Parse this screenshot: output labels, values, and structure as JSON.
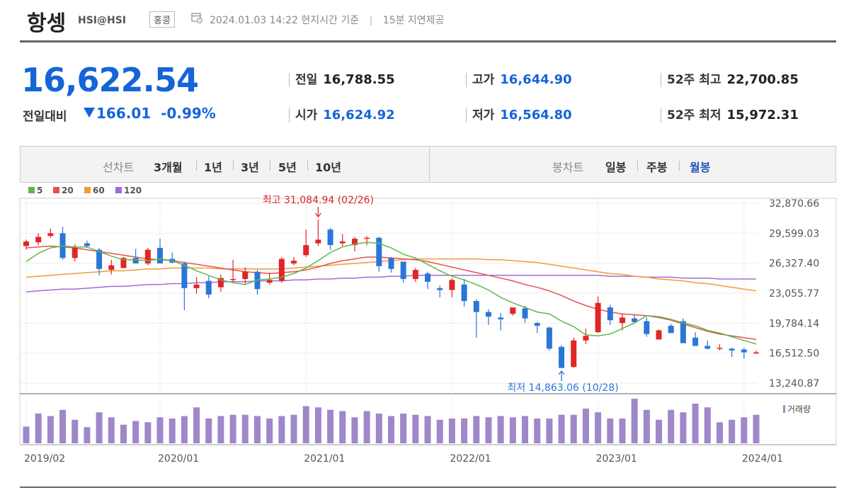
{
  "header": {
    "title": "항셍",
    "code": "HSI@HSI",
    "market": "홍콩",
    "datetime": "2024.01.03 14:22",
    "basis": "현지시간 기준",
    "delay": "15분 지연제공"
  },
  "quote": {
    "price": "16,622.54",
    "change_label": "전일대비",
    "change": "166.01",
    "change_pct": "-0.99%",
    "stats": [
      {
        "label": "전일",
        "value": "16,788.55"
      },
      {
        "label": "시가",
        "value": "16,624.92"
      },
      {
        "label": "고가",
        "value": "16,644.90"
      },
      {
        "label": "저가",
        "value": "16,564.80"
      },
      {
        "label": "52주 최고",
        "value": "22,700.85"
      },
      {
        "label": "52주 최저",
        "value": "15,972.31"
      }
    ]
  },
  "tabs": {
    "line_label": "선차트",
    "line_periods": [
      "3개월",
      "1년",
      "3년",
      "5년",
      "10년"
    ],
    "candle_label": "봉차트",
    "candle_periods": [
      "일봉",
      "주봉",
      "월봉"
    ],
    "candle_selected": "월봉"
  },
  "colors": {
    "up": "#e02626",
    "down": "#2a76d8",
    "ma5": "#5cb84a",
    "ma20": "#e85050",
    "ma60": "#f39a3a",
    "ma120": "#a46ad8",
    "volume": "#9f87c9"
  },
  "chart_data": {
    "type": "candlestick",
    "interval": "monthly",
    "legend": [
      "5",
      "20",
      "60",
      "120"
    ],
    "y_ticks": [
      "32,870.66",
      "29,599.03",
      "26,327.40",
      "23,055.77",
      "19,784.14",
      "16,512.50",
      "13,240.87"
    ],
    "x_ticks": [
      "2019/02",
      "2020/01",
      "2021/01",
      "2022/01",
      "2023/01",
      "2024/01"
    ],
    "ylim": [
      13240.87,
      32870.66
    ],
    "high_annotation": {
      "label": "최고 31,084.94 (02/26)",
      "value": 31084.94,
      "index": 24
    },
    "low_annotation": {
      "label": "최저 14,863.06 (10/28)",
      "value": 14863.06,
      "index": 44
    },
    "volume_label": "거래량",
    "candles": [
      {
        "o": 28200,
        "h": 28900,
        "l": 27800,
        "c": 28700
      },
      {
        "o": 28600,
        "h": 29600,
        "l": 28300,
        "c": 29200
      },
      {
        "o": 29300,
        "h": 30100,
        "l": 29100,
        "c": 29600
      },
      {
        "o": 29600,
        "h": 30300,
        "l": 26700,
        "c": 26900
      },
      {
        "o": 26900,
        "h": 28400,
        "l": 26500,
        "c": 28000
      },
      {
        "o": 28500,
        "h": 28800,
        "l": 28000,
        "c": 28200
      },
      {
        "o": 27800,
        "h": 28000,
        "l": 25000,
        "c": 25700
      },
      {
        "o": 25600,
        "h": 26700,
        "l": 25100,
        "c": 26100
      },
      {
        "o": 25800,
        "h": 27000,
        "l": 25800,
        "c": 26900
      },
      {
        "o": 26900,
        "h": 27900,
        "l": 26400,
        "c": 26300
      },
      {
        "o": 26300,
        "h": 28000,
        "l": 26100,
        "c": 27800
      },
      {
        "o": 28000,
        "h": 29000,
        "l": 26300,
        "c": 26300
      },
      {
        "o": 26800,
        "h": 27500,
        "l": 26300,
        "c": 26400
      },
      {
        "o": 26300,
        "h": 26500,
        "l": 21200,
        "c": 23600
      },
      {
        "o": 23600,
        "h": 24800,
        "l": 23000,
        "c": 24000
      },
      {
        "o": 24400,
        "h": 24900,
        "l": 22500,
        "c": 22900
      },
      {
        "o": 23700,
        "h": 25100,
        "l": 23200,
        "c": 24700
      },
      {
        "o": 24600,
        "h": 26700,
        "l": 24300,
        "c": 24600
      },
      {
        "o": 24600,
        "h": 25900,
        "l": 24100,
        "c": 25400
      },
      {
        "o": 25400,
        "h": 25600,
        "l": 22900,
        "c": 23500
      },
      {
        "o": 24200,
        "h": 25300,
        "l": 24000,
        "c": 24500
      },
      {
        "o": 24400,
        "h": 27000,
        "l": 24200,
        "c": 26800
      },
      {
        "o": 26300,
        "h": 27000,
        "l": 26100,
        "c": 26600
      },
      {
        "o": 27200,
        "h": 30000,
        "l": 27000,
        "c": 28300
      },
      {
        "o": 28500,
        "h": 31085,
        "l": 28200,
        "c": 28900
      },
      {
        "o": 30000,
        "h": 30200,
        "l": 27800,
        "c": 28300
      },
      {
        "o": 28500,
        "h": 29500,
        "l": 28200,
        "c": 28700
      },
      {
        "o": 28300,
        "h": 29200,
        "l": 27600,
        "c": 29000
      },
      {
        "o": 29000,
        "h": 29300,
        "l": 28300,
        "c": 29100
      },
      {
        "o": 29100,
        "h": 29200,
        "l": 25400,
        "c": 26000
      },
      {
        "o": 26900,
        "h": 27000,
        "l": 25300,
        "c": 25700
      },
      {
        "o": 26500,
        "h": 26500,
        "l": 24200,
        "c": 24600
      },
      {
        "o": 24600,
        "h": 25800,
        "l": 24300,
        "c": 25600
      },
      {
        "o": 25200,
        "h": 25400,
        "l": 23500,
        "c": 24300
      },
      {
        "o": 23600,
        "h": 23900,
        "l": 22600,
        "c": 23400
      },
      {
        "o": 23400,
        "h": 24700,
        "l": 22600,
        "c": 24500
      },
      {
        "o": 24000,
        "h": 24600,
        "l": 21600,
        "c": 22200
      },
      {
        "o": 22200,
        "h": 22400,
        "l": 18200,
        "c": 21000
      },
      {
        "o": 21000,
        "h": 21300,
        "l": 19600,
        "c": 20500
      },
      {
        "o": 20400,
        "h": 20900,
        "l": 19000,
        "c": 20200
      },
      {
        "o": 20800,
        "h": 21400,
        "l": 20600,
        "c": 21500
      },
      {
        "o": 21400,
        "h": 21700,
        "l": 19800,
        "c": 20300
      },
      {
        "o": 19800,
        "h": 19900,
        "l": 18700,
        "c": 19500
      },
      {
        "o": 19300,
        "h": 19400,
        "l": 16800,
        "c": 17000
      },
      {
        "o": 17200,
        "h": 17400,
        "l": 14863,
        "c": 14900
      },
      {
        "o": 15000,
        "h": 18200,
        "l": 14900,
        "c": 17900
      },
      {
        "o": 17900,
        "h": 19200,
        "l": 17500,
        "c": 18400
      },
      {
        "o": 18800,
        "h": 22700,
        "l": 18700,
        "c": 22000
      },
      {
        "o": 21500,
        "h": 21800,
        "l": 19600,
        "c": 20100
      },
      {
        "o": 19800,
        "h": 20800,
        "l": 19000,
        "c": 20400
      },
      {
        "o": 20300,
        "h": 20700,
        "l": 19800,
        "c": 19900
      },
      {
        "o": 20000,
        "h": 20400,
        "l": 18300,
        "c": 18600
      },
      {
        "o": 18000,
        "h": 19100,
        "l": 18000,
        "c": 19000
      },
      {
        "o": 19500,
        "h": 19700,
        "l": 18800,
        "c": 18700
      },
      {
        "o": 20000,
        "h": 20300,
        "l": 17700,
        "c": 17600
      },
      {
        "o": 18200,
        "h": 18800,
        "l": 17400,
        "c": 17300
      },
      {
        "o": 17300,
        "h": 17900,
        "l": 16900,
        "c": 17000
      },
      {
        "o": 17000,
        "h": 17500,
        "l": 16800,
        "c": 17100
      },
      {
        "o": 17000,
        "h": 17100,
        "l": 16100,
        "c": 16800
      },
      {
        "o": 16900,
        "h": 17100,
        "l": 15900,
        "c": 16600
      },
      {
        "o": 16500,
        "h": 16800,
        "l": 16400,
        "c": 16600
      }
    ],
    "ma5": [
      26500,
      27400,
      28000,
      28200,
      28100,
      28100,
      27600,
      27100,
      26700,
      26700,
      26600,
      26800,
      26600,
      26100,
      25500,
      25000,
      24500,
      24200,
      24000,
      24500,
      24600,
      24800,
      25200,
      25800,
      26600,
      27500,
      28100,
      28400,
      28600,
      28500,
      28000,
      27300,
      26900,
      26200,
      25500,
      24900,
      24500,
      24000,
      23400,
      22600,
      22000,
      21500,
      21000,
      20800,
      20000,
      19400,
      18500,
      18400,
      18600,
      19200,
      19800,
      20600,
      20500,
      20200,
      19800,
      19500,
      19000,
      18700,
      18300,
      17900,
      17500
    ],
    "ma20": [
      28000,
      28100,
      28200,
      28100,
      28000,
      27800,
      27600,
      27400,
      27200,
      27000,
      26800,
      26700,
      26600,
      26400,
      26200,
      26000,
      25800,
      25600,
      25400,
      25300,
      25200,
      25300,
      25400,
      25600,
      25900,
      26300,
      26600,
      26800,
      27000,
      27000,
      26900,
      26800,
      26700,
      26500,
      26200,
      25900,
      25600,
      25300,
      25000,
      24700,
      24400,
      24000,
      23700,
      23300,
      22800,
      22200,
      21700,
      21300,
      21000,
      20800,
      20700,
      20600,
      20400,
      20100,
      19700,
      19300,
      18900,
      18600,
      18400,
      18200,
      18000
    ],
    "ma60": [
      24800,
      24900,
      25000,
      25100,
      25200,
      25300,
      25400,
      25500,
      25500,
      25600,
      25700,
      25700,
      25800,
      25800,
      25800,
      25800,
      25700,
      25700,
      25700,
      25700,
      25700,
      25700,
      25800,
      25900,
      26000,
      26100,
      26200,
      26300,
      26400,
      26500,
      26600,
      26700,
      26800,
      26800,
      26800,
      26800,
      26800,
      26800,
      26700,
      26700,
      26600,
      26500,
      26400,
      26200,
      26000,
      25800,
      25600,
      25400,
      25200,
      25100,
      24900,
      24800,
      24600,
      24500,
      24400,
      24200,
      24100,
      23900,
      23700,
      23500,
      23300
    ],
    "ma120": [
      23200,
      23300,
      23400,
      23500,
      23500,
      23600,
      23700,
      23800,
      23800,
      23900,
      24000,
      24000,
      24100,
      24100,
      24200,
      24200,
      24300,
      24300,
      24300,
      24400,
      24400,
      24400,
      24500,
      24500,
      24600,
      24600,
      24700,
      24700,
      24800,
      24800,
      24900,
      24900,
      25000,
      25000,
      25000,
      25000,
      25000,
      25000,
      25000,
      25000,
      25000,
      25000,
      25000,
      25000,
      25000,
      25000,
      25000,
      25000,
      24900,
      24900,
      24900,
      24800,
      24800,
      24800,
      24700,
      24700,
      24700,
      24600,
      24600,
      24600,
      24600
    ],
    "volume": [
      27,
      48,
      44,
      54,
      38,
      26,
      50,
      42,
      30,
      36,
      34,
      42,
      40,
      44,
      58,
      40,
      44,
      46,
      46,
      44,
      40,
      44,
      46,
      60,
      58,
      54,
      52,
      42,
      52,
      48,
      44,
      48,
      46,
      44,
      38,
      40,
      40,
      44,
      42,
      44,
      42,
      44,
      40,
      40,
      46,
      46,
      56,
      50,
      40,
      40,
      72,
      54,
      38,
      54,
      50,
      64,
      58,
      34,
      38,
      42,
      46
    ]
  }
}
